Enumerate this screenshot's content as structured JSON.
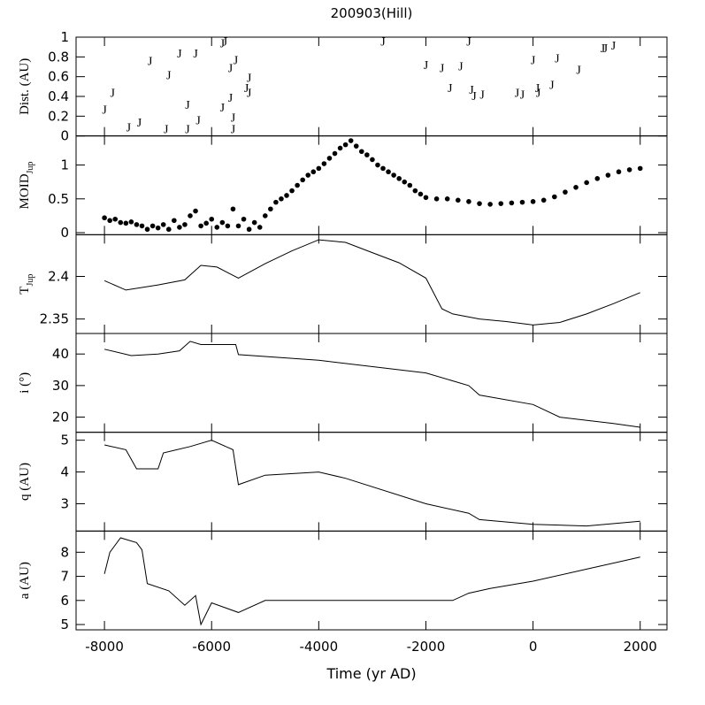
{
  "chart_data": [
    {
      "type": "scatter",
      "title": "200903(Hill)",
      "ylabel": "Dist. (AU)",
      "marker": "J",
      "xlim": [
        -8530,
        2500
      ],
      "xticks": [
        -8000,
        -6000,
        -4000,
        -2000,
        0,
        2000
      ],
      "ylim": [
        0,
        1
      ],
      "yticks": [
        0,
        0.2,
        0.4,
        0.6,
        0.8,
        1
      ],
      "x": [
        -8000,
        -7850,
        -7550,
        -7350,
        -7150,
        -6850,
        -6800,
        -6600,
        -6450,
        -6450,
        -6300,
        -6250,
        -5800,
        -5800,
        -5750,
        -5650,
        -5650,
        -5600,
        -5600,
        -5550,
        -5350,
        -5300,
        -5300,
        -2800,
        -2000,
        -1700,
        -1550,
        -1350,
        -1200,
        -1150,
        -1100,
        -950,
        -300,
        -200,
        0,
        80,
        100,
        350,
        450,
        850,
        1300,
        1350,
        1500
      ],
      "values": [
        0.28,
        0.45,
        0.1,
        0.15,
        0.77,
        0.08,
        0.63,
        0.85,
        0.08,
        0.33,
        0.85,
        0.17,
        0.95,
        0.3,
        0.97,
        0.4,
        0.7,
        0.2,
        0.08,
        0.78,
        0.5,
        0.6,
        0.45,
        0.97,
        0.73,
        0.7,
        0.5,
        0.72,
        0.97,
        0.48,
        0.42,
        0.43,
        0.45,
        0.43,
        0.78,
        0.5,
        0.45,
        0.53,
        0.8,
        0.68,
        0.9,
        0.9,
        0.93
      ]
    },
    {
      "type": "dots",
      "ylabel": "MOID",
      "ylabel_sub": "Jup",
      "xlim": [
        -8530,
        2500
      ],
      "xticks": [
        -8000,
        -6000,
        -4000,
        -2000,
        0,
        2000
      ],
      "ylim": [
        -0.03,
        1.43
      ],
      "yticks": [
        0,
        0.5,
        1
      ],
      "x": [
        -8000,
        -7900,
        -7800,
        -7700,
        -7600,
        -7500,
        -7400,
        -7300,
        -7200,
        -7100,
        -7000,
        -6900,
        -6800,
        -6700,
        -6600,
        -6500,
        -6400,
        -6300,
        -6200,
        -6100,
        -6000,
        -5900,
        -5800,
        -5700,
        -5600,
        -5500,
        -5400,
        -5300,
        -5200,
        -5100,
        -5000,
        -4900,
        -4800,
        -4700,
        -4600,
        -4500,
        -4400,
        -4300,
        -4200,
        -4100,
        -4000,
        -3900,
        -3800,
        -3700,
        -3600,
        -3500,
        -3400,
        -3300,
        -3200,
        -3100,
        -3000,
        -2900,
        -2800,
        -2700,
        -2600,
        -2500,
        -2400,
        -2300,
        -2200,
        -2100,
        -2000,
        -1800,
        -1600,
        -1400,
        -1200,
        -1000,
        -800,
        -600,
        -400,
        -200,
        0,
        200,
        400,
        600,
        800,
        1000,
        1200,
        1400,
        1600,
        1800,
        2000
      ],
      "values": [
        0.22,
        0.18,
        0.2,
        0.15,
        0.14,
        0.16,
        0.12,
        0.1,
        0.05,
        0.1,
        0.07,
        0.12,
        0.05,
        0.18,
        0.08,
        0.12,
        0.25,
        0.32,
        0.1,
        0.14,
        0.2,
        0.08,
        0.15,
        0.1,
        0.35,
        0.1,
        0.2,
        0.05,
        0.15,
        0.08,
        0.25,
        0.35,
        0.45,
        0.5,
        0.55,
        0.62,
        0.7,
        0.78,
        0.85,
        0.9,
        0.95,
        1.02,
        1.1,
        1.17,
        1.25,
        1.3,
        1.36,
        1.28,
        1.2,
        1.15,
        1.08,
        1.0,
        0.95,
        0.9,
        0.85,
        0.8,
        0.75,
        0.7,
        0.62,
        0.57,
        0.52,
        0.5,
        0.5,
        0.48,
        0.46,
        0.43,
        0.42,
        0.43,
        0.44,
        0.45,
        0.46,
        0.48,
        0.53,
        0.6,
        0.67,
        0.74,
        0.8,
        0.85,
        0.9,
        0.93,
        0.95
      ]
    },
    {
      "type": "line",
      "ylabel": "T",
      "ylabel_sub": "Jup",
      "xlim": [
        -8530,
        2500
      ],
      "xticks": [
        -8000,
        -6000,
        -4000,
        -2000,
        0,
        2000
      ],
      "ylim": [
        2.333,
        2.449
      ],
      "yticks": [
        2.35,
        2.4
      ],
      "x": [
        -8000,
        -7600,
        -7000,
        -6500,
        -6200,
        -5900,
        -5500,
        -5000,
        -4500,
        -4000,
        -3500,
        -3000,
        -2500,
        -2000,
        -1700,
        -1500,
        -1000,
        -500,
        0,
        500,
        1000,
        1500,
        2000
      ],
      "values": [
        2.395,
        2.384,
        2.39,
        2.396,
        2.413,
        2.411,
        2.398,
        2.415,
        2.43,
        2.443,
        2.44,
        2.428,
        2.416,
        2.398,
        2.362,
        2.356,
        2.35,
        2.347,
        2.343,
        2.346,
        2.356,
        2.368,
        2.381
      ]
    },
    {
      "type": "line",
      "ylabel": "i (°)",
      "xlim": [
        -8530,
        2500
      ],
      "xticks": [
        -8000,
        -6000,
        -4000,
        -2000,
        0,
        2000
      ],
      "ylim": [
        15.2,
        46.5
      ],
      "yticks": [
        20,
        30,
        40
      ],
      "x": [
        -8000,
        -7500,
        -7000,
        -6600,
        -6400,
        -6200,
        -5550,
        -5500,
        -4000,
        -2000,
        -1200,
        -1000,
        0,
        500,
        1500,
        2000
      ],
      "values": [
        41.5,
        39.5,
        40,
        41,
        44,
        43,
        43,
        39.8,
        38,
        34,
        30,
        27,
        24,
        20,
        18,
        16.8
      ]
    },
    {
      "type": "line",
      "ylabel": "q (AU)",
      "xlim": [
        -8530,
        2500
      ],
      "xticks": [
        -8000,
        -6000,
        -4000,
        -2000,
        0,
        2000
      ],
      "ylim": [
        2.14,
        5.25
      ],
      "yticks": [
        3,
        4,
        5
      ],
      "x": [
        -8000,
        -7600,
        -7400,
        -7000,
        -6900,
        -6400,
        -6000,
        -5600,
        -5500,
        -5000,
        -4000,
        -3500,
        -2000,
        -1200,
        -1000,
        0,
        1000,
        2000
      ],
      "values": [
        4.85,
        4.7,
        4.1,
        4.1,
        4.6,
        4.8,
        5.0,
        4.7,
        3.6,
        3.9,
        4.0,
        3.8,
        3.0,
        2.7,
        2.5,
        2.35,
        2.3,
        2.45
      ]
    },
    {
      "type": "line",
      "ylabel": "a (AU)",
      "xlabel": "Time (yr AD)",
      "xlim": [
        -8530,
        2500
      ],
      "xticks": [
        -8000,
        -6000,
        -4000,
        -2000,
        0,
        2000
      ],
      "ylim": [
        4.78,
        8.88
      ],
      "yticks": [
        5,
        6,
        7,
        8
      ],
      "x": [
        -8000,
        -7900,
        -7700,
        -7400,
        -7300,
        -7200,
        -6800,
        -6500,
        -6300,
        -6200,
        -6000,
        -5500,
        -5000,
        -3000,
        -1500,
        -1200,
        -800,
        0,
        1000,
        2000
      ],
      "values": [
        7.1,
        8.0,
        8.6,
        8.4,
        8.1,
        6.7,
        6.4,
        5.8,
        6.2,
        5.0,
        5.9,
        5.5,
        6.0,
        6.0,
        6.0,
        6.3,
        6.5,
        6.8,
        7.3,
        7.8
      ]
    }
  ]
}
